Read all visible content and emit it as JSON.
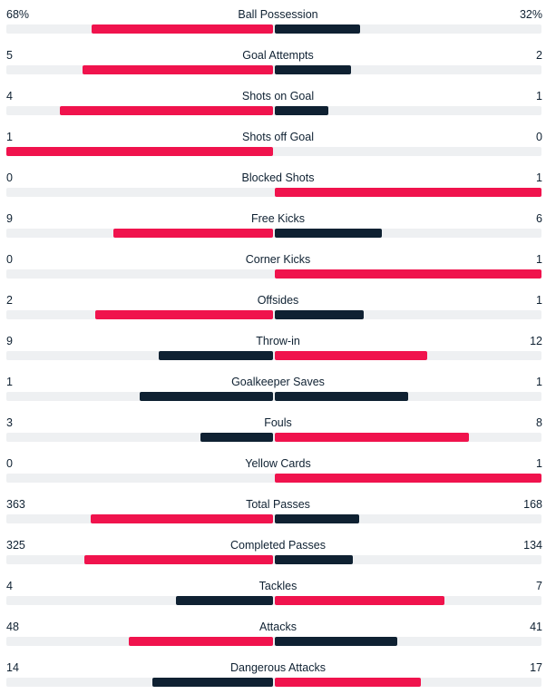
{
  "colors": {
    "leading": "#f0134d",
    "trailing": "#0f2132",
    "track": "#eef0f2"
  },
  "stats": [
    {
      "label": "Ball Possession",
      "home": "68%",
      "away": "32%",
      "home_val": 68,
      "away_val": 32
    },
    {
      "label": "Goal Attempts",
      "home": "5",
      "away": "2",
      "home_val": 5,
      "away_val": 2
    },
    {
      "label": "Shots on Goal",
      "home": "4",
      "away": "1",
      "home_val": 4,
      "away_val": 1
    },
    {
      "label": "Shots off Goal",
      "home": "1",
      "away": "0",
      "home_val": 1,
      "away_val": 0
    },
    {
      "label": "Blocked Shots",
      "home": "0",
      "away": "1",
      "home_val": 0,
      "away_val": 1
    },
    {
      "label": "Free Kicks",
      "home": "9",
      "away": "6",
      "home_val": 9,
      "away_val": 6
    },
    {
      "label": "Corner Kicks",
      "home": "0",
      "away": "1",
      "home_val": 0,
      "away_val": 1
    },
    {
      "label": "Offsides",
      "home": "2",
      "away": "1",
      "home_val": 2,
      "away_val": 1
    },
    {
      "label": "Throw-in",
      "home": "9",
      "away": "12",
      "home_val": 9,
      "away_val": 12
    },
    {
      "label": "Goalkeeper Saves",
      "home": "1",
      "away": "1",
      "home_val": 1,
      "away_val": 1
    },
    {
      "label": "Fouls",
      "home": "3",
      "away": "8",
      "home_val": 3,
      "away_val": 8
    },
    {
      "label": "Yellow Cards",
      "home": "0",
      "away": "1",
      "home_val": 0,
      "away_val": 1
    },
    {
      "label": "Total Passes",
      "home": "363",
      "away": "168",
      "home_val": 363,
      "away_val": 168
    },
    {
      "label": "Completed Passes",
      "home": "325",
      "away": "134",
      "home_val": 325,
      "away_val": 134
    },
    {
      "label": "Tackles",
      "home": "4",
      "away": "7",
      "home_val": 4,
      "away_val": 7
    },
    {
      "label": "Attacks",
      "home": "48",
      "away": "41",
      "home_val": 48,
      "away_val": 41
    },
    {
      "label": "Dangerous Attacks",
      "home": "14",
      "away": "17",
      "home_val": 14,
      "away_val": 17
    }
  ]
}
